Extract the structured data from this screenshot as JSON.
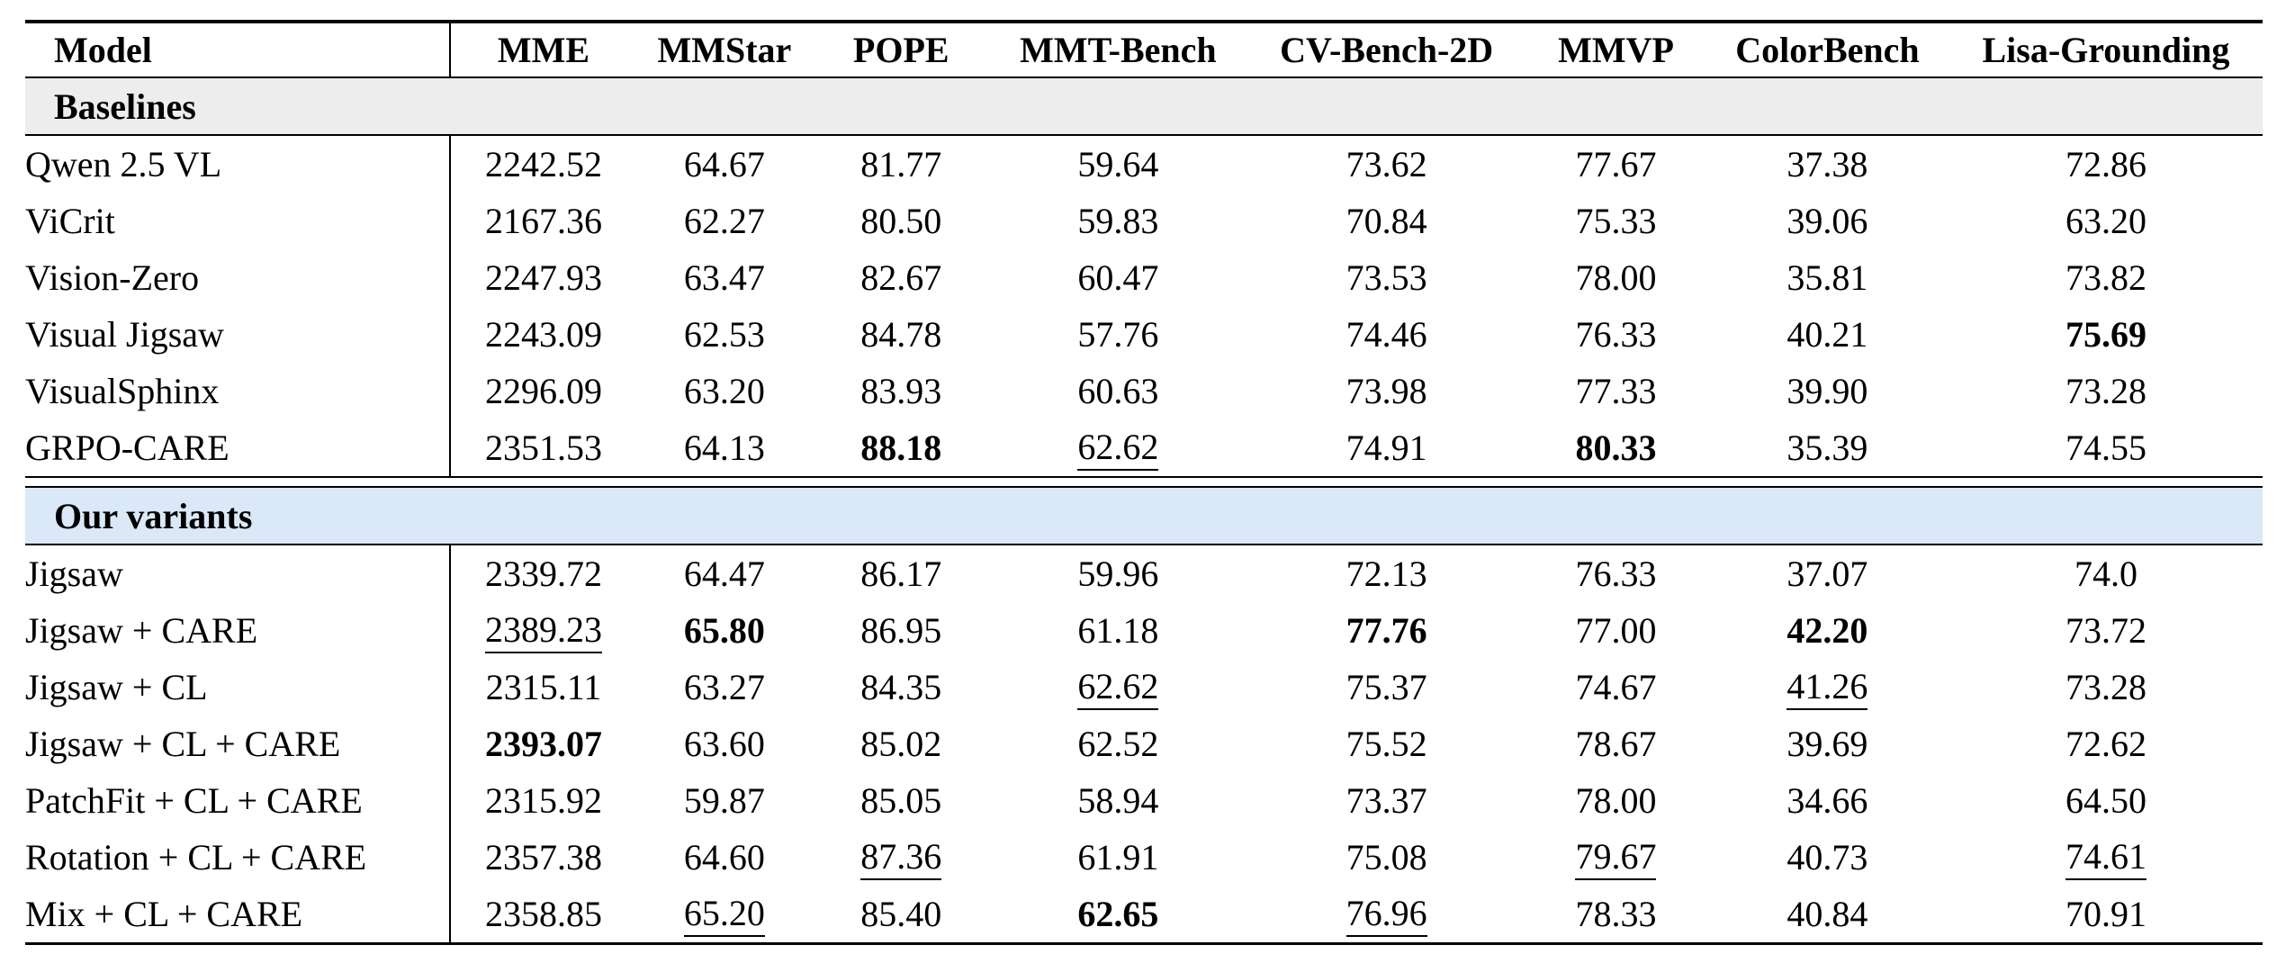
{
  "page": {
    "background": "#ffffff",
    "text_color": "#000000"
  },
  "table": {
    "columns": [
      "Model",
      "MME",
      "MMStar",
      "POPE",
      "MMT-Bench",
      "CV-Bench-2D",
      "MMVP",
      "ColorBench",
      "Lisa-Grounding"
    ],
    "sections": [
      {
        "key": "baselines",
        "label": "Baselines",
        "bg": "#ededed",
        "rows": [
          {
            "model": "Qwen 2.5 VL",
            "values": [
              {
                "t": "2242.52"
              },
              {
                "t": "64.67"
              },
              {
                "t": "81.77"
              },
              {
                "t": "59.64"
              },
              {
                "t": "73.62"
              },
              {
                "t": "77.67"
              },
              {
                "t": "37.38"
              },
              {
                "t": "72.86"
              }
            ]
          },
          {
            "model": "ViCrit",
            "values": [
              {
                "t": "2167.36"
              },
              {
                "t": "62.27"
              },
              {
                "t": "80.50"
              },
              {
                "t": "59.83"
              },
              {
                "t": "70.84"
              },
              {
                "t": "75.33"
              },
              {
                "t": "39.06"
              },
              {
                "t": "63.20"
              }
            ]
          },
          {
            "model": "Vision-Zero",
            "values": [
              {
                "t": "2247.93"
              },
              {
                "t": "63.47"
              },
              {
                "t": "82.67"
              },
              {
                "t": "60.47"
              },
              {
                "t": "73.53"
              },
              {
                "t": "78.00"
              },
              {
                "t": "35.81"
              },
              {
                "t": "73.82"
              }
            ]
          },
          {
            "model": "Visual Jigsaw",
            "values": [
              {
                "t": "2243.09"
              },
              {
                "t": "62.53"
              },
              {
                "t": "84.78"
              },
              {
                "t": "57.76"
              },
              {
                "t": "74.46"
              },
              {
                "t": "76.33"
              },
              {
                "t": "40.21"
              },
              {
                "t": "75.69",
                "b": true
              }
            ]
          },
          {
            "model": "VisualSphinx",
            "values": [
              {
                "t": "2296.09"
              },
              {
                "t": "63.20"
              },
              {
                "t": "83.93"
              },
              {
                "t": "60.63"
              },
              {
                "t": "73.98"
              },
              {
                "t": "77.33"
              },
              {
                "t": "39.90"
              },
              {
                "t": "73.28"
              }
            ]
          },
          {
            "model": "GRPO-CARE",
            "values": [
              {
                "t": "2351.53"
              },
              {
                "t": "64.13"
              },
              {
                "t": "88.18",
                "b": true
              },
              {
                "t": "62.62",
                "u": true
              },
              {
                "t": "74.91"
              },
              {
                "t": "80.33",
                "b": true
              },
              {
                "t": "35.39"
              },
              {
                "t": "74.55"
              }
            ]
          }
        ]
      },
      {
        "key": "our-variants",
        "label": "Our variants",
        "bg": "#dbe8f8",
        "rows": [
          {
            "model": "Jigsaw",
            "values": [
              {
                "t": "2339.72"
              },
              {
                "t": "64.47"
              },
              {
                "t": "86.17"
              },
              {
                "t": "59.96"
              },
              {
                "t": "72.13"
              },
              {
                "t": "76.33"
              },
              {
                "t": "37.07"
              },
              {
                "t": "74.0"
              }
            ]
          },
          {
            "model": "Jigsaw + CARE",
            "values": [
              {
                "t": "2389.23",
                "u": true
              },
              {
                "t": "65.80",
                "b": true
              },
              {
                "t": "86.95"
              },
              {
                "t": "61.18"
              },
              {
                "t": "77.76",
                "b": true
              },
              {
                "t": "77.00"
              },
              {
                "t": "42.20",
                "b": true
              },
              {
                "t": "73.72"
              }
            ]
          },
          {
            "model": "Jigsaw + CL",
            "values": [
              {
                "t": "2315.11"
              },
              {
                "t": "63.27"
              },
              {
                "t": "84.35"
              },
              {
                "t": "62.62",
                "u": true
              },
              {
                "t": "75.37"
              },
              {
                "t": "74.67"
              },
              {
                "t": "41.26",
                "u": true
              },
              {
                "t": "73.28"
              }
            ]
          },
          {
            "model": "Jigsaw + CL + CARE",
            "values": [
              {
                "t": "2393.07",
                "b": true
              },
              {
                "t": "63.60"
              },
              {
                "t": "85.02"
              },
              {
                "t": "62.52"
              },
              {
                "t": "75.52"
              },
              {
                "t": "78.67"
              },
              {
                "t": "39.69"
              },
              {
                "t": "72.62"
              }
            ]
          },
          {
            "model": "PatchFit + CL + CARE",
            "values": [
              {
                "t": "2315.92"
              },
              {
                "t": "59.87"
              },
              {
                "t": "85.05"
              },
              {
                "t": "58.94"
              },
              {
                "t": "73.37"
              },
              {
                "t": "78.00"
              },
              {
                "t": "34.66"
              },
              {
                "t": "64.50"
              }
            ]
          },
          {
            "model": "Rotation + CL + CARE",
            "values": [
              {
                "t": "2357.38"
              },
              {
                "t": "64.60"
              },
              {
                "t": "87.36",
                "u": true
              },
              {
                "t": "61.91"
              },
              {
                "t": "75.08"
              },
              {
                "t": "79.67",
                "u": true
              },
              {
                "t": "40.73"
              },
              {
                "t": "74.61",
                "u": true
              }
            ]
          },
          {
            "model": "Mix + CL + CARE",
            "values": [
              {
                "t": "2358.85"
              },
              {
                "t": "65.20",
                "u": true
              },
              {
                "t": "85.40"
              },
              {
                "t": "62.65",
                "b": true
              },
              {
                "t": "76.96",
                "u": true
              },
              {
                "t": "78.33"
              },
              {
                "t": "40.84"
              },
              {
                "t": "70.91"
              }
            ]
          }
        ]
      }
    ]
  }
}
